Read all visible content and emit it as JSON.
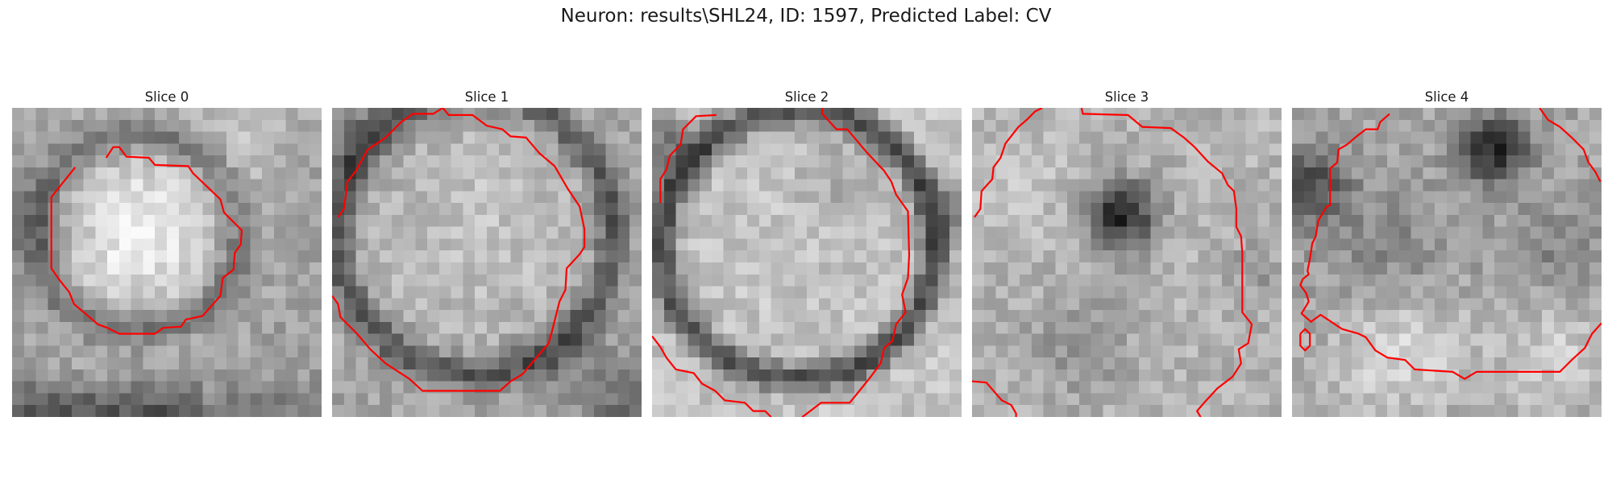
{
  "figure": {
    "title": "Neuron: results\\SHL24, ID: 1597, Predicted Label: CV"
  },
  "panels": [
    {
      "title": "Slice 0"
    },
    {
      "title": "Slice 1"
    },
    {
      "title": "Slice 2"
    },
    {
      "title": "Slice 3"
    },
    {
      "title": "Slice 4"
    }
  ],
  "colors": {
    "contour": "#ff0000",
    "background": "#ffffff"
  },
  "image": {
    "colormap": "grayscale",
    "grid_cells": 26
  }
}
